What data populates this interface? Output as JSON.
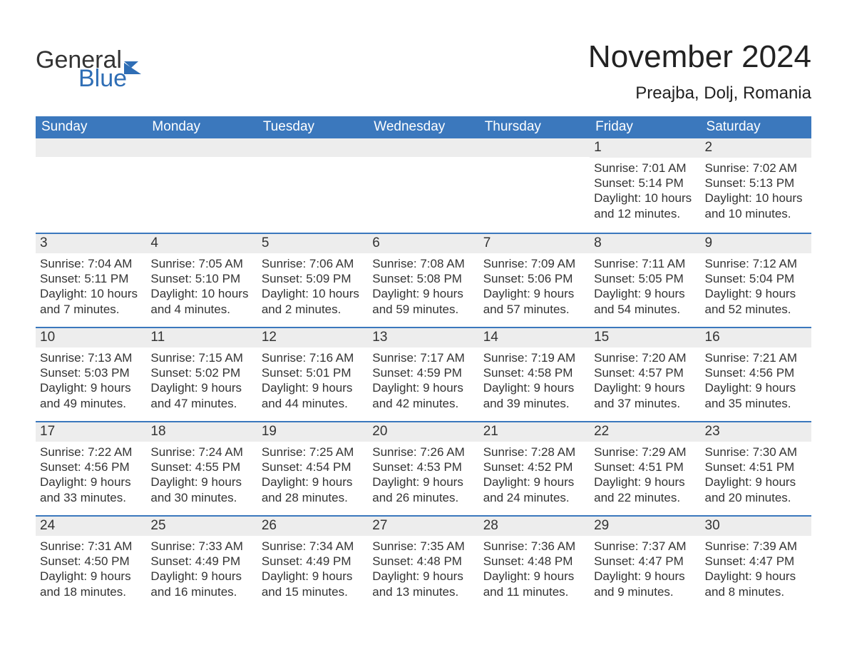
{
  "logo": {
    "text_top": "General",
    "text_bottom": "Blue",
    "flag_color": "#2f6eb5",
    "text_color": "#333333"
  },
  "header": {
    "title": "November 2024",
    "subtitle": "Preajba, Dolj, Romania"
  },
  "colors": {
    "header_bg": "#3b78bd",
    "header_text": "#ffffff",
    "week_border": "#3b78bd",
    "daynum_bg": "#ededed",
    "body_text": "#333333",
    "background": "#ffffff"
  },
  "fontsizes": {
    "title": 44,
    "subtitle": 24,
    "header": 19,
    "daynum": 19,
    "detail": 17
  },
  "calendar": {
    "type": "table",
    "columns": [
      "Sunday",
      "Monday",
      "Tuesday",
      "Wednesday",
      "Thursday",
      "Friday",
      "Saturday"
    ],
    "weeks": [
      [
        null,
        null,
        null,
        null,
        null,
        {
          "day": "1",
          "sunrise": "Sunrise: 7:01 AM",
          "sunset": "Sunset: 5:14 PM",
          "daylight1": "Daylight: 10 hours",
          "daylight2": "and 12 minutes."
        },
        {
          "day": "2",
          "sunrise": "Sunrise: 7:02 AM",
          "sunset": "Sunset: 5:13 PM",
          "daylight1": "Daylight: 10 hours",
          "daylight2": "and 10 minutes."
        }
      ],
      [
        {
          "day": "3",
          "sunrise": "Sunrise: 7:04 AM",
          "sunset": "Sunset: 5:11 PM",
          "daylight1": "Daylight: 10 hours",
          "daylight2": "and 7 minutes."
        },
        {
          "day": "4",
          "sunrise": "Sunrise: 7:05 AM",
          "sunset": "Sunset: 5:10 PM",
          "daylight1": "Daylight: 10 hours",
          "daylight2": "and 4 minutes."
        },
        {
          "day": "5",
          "sunrise": "Sunrise: 7:06 AM",
          "sunset": "Sunset: 5:09 PM",
          "daylight1": "Daylight: 10 hours",
          "daylight2": "and 2 minutes."
        },
        {
          "day": "6",
          "sunrise": "Sunrise: 7:08 AM",
          "sunset": "Sunset: 5:08 PM",
          "daylight1": "Daylight: 9 hours",
          "daylight2": "and 59 minutes."
        },
        {
          "day": "7",
          "sunrise": "Sunrise: 7:09 AM",
          "sunset": "Sunset: 5:06 PM",
          "daylight1": "Daylight: 9 hours",
          "daylight2": "and 57 minutes."
        },
        {
          "day": "8",
          "sunrise": "Sunrise: 7:11 AM",
          "sunset": "Sunset: 5:05 PM",
          "daylight1": "Daylight: 9 hours",
          "daylight2": "and 54 minutes."
        },
        {
          "day": "9",
          "sunrise": "Sunrise: 7:12 AM",
          "sunset": "Sunset: 5:04 PM",
          "daylight1": "Daylight: 9 hours",
          "daylight2": "and 52 minutes."
        }
      ],
      [
        {
          "day": "10",
          "sunrise": "Sunrise: 7:13 AM",
          "sunset": "Sunset: 5:03 PM",
          "daylight1": "Daylight: 9 hours",
          "daylight2": "and 49 minutes."
        },
        {
          "day": "11",
          "sunrise": "Sunrise: 7:15 AM",
          "sunset": "Sunset: 5:02 PM",
          "daylight1": "Daylight: 9 hours",
          "daylight2": "and 47 minutes."
        },
        {
          "day": "12",
          "sunrise": "Sunrise: 7:16 AM",
          "sunset": "Sunset: 5:01 PM",
          "daylight1": "Daylight: 9 hours",
          "daylight2": "and 44 minutes."
        },
        {
          "day": "13",
          "sunrise": "Sunrise: 7:17 AM",
          "sunset": "Sunset: 4:59 PM",
          "daylight1": "Daylight: 9 hours",
          "daylight2": "and 42 minutes."
        },
        {
          "day": "14",
          "sunrise": "Sunrise: 7:19 AM",
          "sunset": "Sunset: 4:58 PM",
          "daylight1": "Daylight: 9 hours",
          "daylight2": "and 39 minutes."
        },
        {
          "day": "15",
          "sunrise": "Sunrise: 7:20 AM",
          "sunset": "Sunset: 4:57 PM",
          "daylight1": "Daylight: 9 hours",
          "daylight2": "and 37 minutes."
        },
        {
          "day": "16",
          "sunrise": "Sunrise: 7:21 AM",
          "sunset": "Sunset: 4:56 PM",
          "daylight1": "Daylight: 9 hours",
          "daylight2": "and 35 minutes."
        }
      ],
      [
        {
          "day": "17",
          "sunrise": "Sunrise: 7:22 AM",
          "sunset": "Sunset: 4:56 PM",
          "daylight1": "Daylight: 9 hours",
          "daylight2": "and 33 minutes."
        },
        {
          "day": "18",
          "sunrise": "Sunrise: 7:24 AM",
          "sunset": "Sunset: 4:55 PM",
          "daylight1": "Daylight: 9 hours",
          "daylight2": "and 30 minutes."
        },
        {
          "day": "19",
          "sunrise": "Sunrise: 7:25 AM",
          "sunset": "Sunset: 4:54 PM",
          "daylight1": "Daylight: 9 hours",
          "daylight2": "and 28 minutes."
        },
        {
          "day": "20",
          "sunrise": "Sunrise: 7:26 AM",
          "sunset": "Sunset: 4:53 PM",
          "daylight1": "Daylight: 9 hours",
          "daylight2": "and 26 minutes."
        },
        {
          "day": "21",
          "sunrise": "Sunrise: 7:28 AM",
          "sunset": "Sunset: 4:52 PM",
          "daylight1": "Daylight: 9 hours",
          "daylight2": "and 24 minutes."
        },
        {
          "day": "22",
          "sunrise": "Sunrise: 7:29 AM",
          "sunset": "Sunset: 4:51 PM",
          "daylight1": "Daylight: 9 hours",
          "daylight2": "and 22 minutes."
        },
        {
          "day": "23",
          "sunrise": "Sunrise: 7:30 AM",
          "sunset": "Sunset: 4:51 PM",
          "daylight1": "Daylight: 9 hours",
          "daylight2": "and 20 minutes."
        }
      ],
      [
        {
          "day": "24",
          "sunrise": "Sunrise: 7:31 AM",
          "sunset": "Sunset: 4:50 PM",
          "daylight1": "Daylight: 9 hours",
          "daylight2": "and 18 minutes."
        },
        {
          "day": "25",
          "sunrise": "Sunrise: 7:33 AM",
          "sunset": "Sunset: 4:49 PM",
          "daylight1": "Daylight: 9 hours",
          "daylight2": "and 16 minutes."
        },
        {
          "day": "26",
          "sunrise": "Sunrise: 7:34 AM",
          "sunset": "Sunset: 4:49 PM",
          "daylight1": "Daylight: 9 hours",
          "daylight2": "and 15 minutes."
        },
        {
          "day": "27",
          "sunrise": "Sunrise: 7:35 AM",
          "sunset": "Sunset: 4:48 PM",
          "daylight1": "Daylight: 9 hours",
          "daylight2": "and 13 minutes."
        },
        {
          "day": "28",
          "sunrise": "Sunrise: 7:36 AM",
          "sunset": "Sunset: 4:48 PM",
          "daylight1": "Daylight: 9 hours",
          "daylight2": "and 11 minutes."
        },
        {
          "day": "29",
          "sunrise": "Sunrise: 7:37 AM",
          "sunset": "Sunset: 4:47 PM",
          "daylight1": "Daylight: 9 hours",
          "daylight2": "and 9 minutes."
        },
        {
          "day": "30",
          "sunrise": "Sunrise: 7:39 AM",
          "sunset": "Sunset: 4:47 PM",
          "daylight1": "Daylight: 9 hours",
          "daylight2": "and 8 minutes."
        }
      ]
    ]
  }
}
